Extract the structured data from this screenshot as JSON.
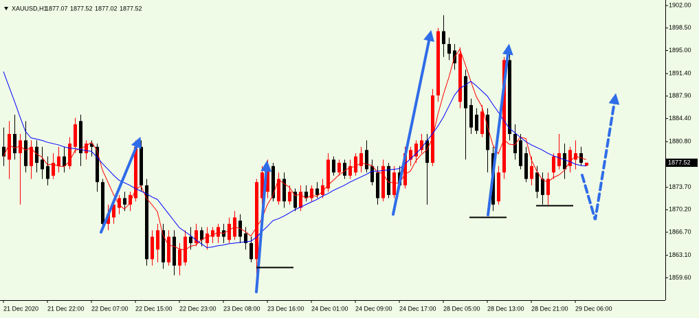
{
  "chart_data": {
    "type": "candlestick",
    "header": {
      "symbol": "XAUUSD,H1"
    },
    "up_color": "#ff0000",
    "down_color": "#000000",
    "background": "#effbe6",
    "ylim": [
      1856.12,
      1902.86
    ],
    "yticks": [
      {
        "value": 1902,
        "label": "1902.00"
      },
      {
        "value": 1898.5,
        "label": "1898.50"
      },
      {
        "value": 1895,
        "label": "1895.00"
      },
      {
        "value": 1891.4,
        "label": "1891.40"
      },
      {
        "value": 1887.9,
        "label": "1887.90"
      },
      {
        "value": 1884.4,
        "label": "1884.40"
      },
      {
        "value": 1880.8,
        "label": "1880.80"
      },
      {
        "value": 1873.7,
        "label": "1873.70"
      },
      {
        "value": 1870.2,
        "label": "1870.20"
      },
      {
        "value": 1866.7,
        "label": "1866.70"
      },
      {
        "value": 1863.1,
        "label": "1863.10"
      },
      {
        "value": 1859.6,
        "label": "1859.60"
      }
    ],
    "xticks": [
      {
        "value": 0,
        "label": "21 Dec 2020"
      },
      {
        "value": 8,
        "label": "21 Dec 22:00"
      },
      {
        "value": 16,
        "label": "22 Dec 07:00"
      },
      {
        "value": 24,
        "label": "22 Dec 15:00"
      },
      {
        "value": 32,
        "label": "22 Dec 23:00"
      },
      {
        "value": 40,
        "label": "23 Dec 08:00"
      },
      {
        "value": 48,
        "label": "23 Dec 16:00"
      },
      {
        "value": 56,
        "label": "24 Dec 01:00"
      },
      {
        "value": 64,
        "label": "24 Dec 09:00"
      },
      {
        "value": 72,
        "label": "24 Dec 17:00"
      },
      {
        "value": 80,
        "label": "28 Dec 05:00"
      },
      {
        "value": 88,
        "label": "28 Dec 13:00"
      },
      {
        "value": 96,
        "label": "28 Dec 21:00"
      },
      {
        "value": 104,
        "label": "29 Dec 06:00"
      }
    ],
    "candles": [
      {
        "o": 1880,
        "h": 1883,
        "l": 1877,
        "c": 1878.5
      },
      {
        "o": 1878,
        "h": 1884,
        "l": 1875,
        "c": 1882
      },
      {
        "o": 1882,
        "h": 1885,
        "l": 1878,
        "c": 1879
      },
      {
        "o": 1879,
        "h": 1882,
        "l": 1871,
        "c": 1881
      },
      {
        "o": 1881,
        "h": 1884,
        "l": 1876,
        "c": 1877
      },
      {
        "o": 1877,
        "h": 1881,
        "l": 1875,
        "c": 1880
      },
      {
        "o": 1880,
        "h": 1881,
        "l": 1876,
        "c": 1877.5
      },
      {
        "o": 1878,
        "h": 1880,
        "l": 1875,
        "c": 1876.5
      },
      {
        "o": 1877,
        "h": 1878.5,
        "l": 1874,
        "c": 1875
      },
      {
        "o": 1875.5,
        "h": 1879,
        "l": 1875,
        "c": 1877.5
      },
      {
        "o": 1877,
        "h": 1880,
        "l": 1876,
        "c": 1878.5
      },
      {
        "o": 1878.5,
        "h": 1880,
        "l": 1876,
        "c": 1877
      },
      {
        "o": 1877,
        "h": 1881.5,
        "l": 1876.5,
        "c": 1880.5
      },
      {
        "o": 1880,
        "h": 1884.5,
        "l": 1879,
        "c": 1883.5
      },
      {
        "o": 1884,
        "h": 1885,
        "l": 1877,
        "c": 1879
      },
      {
        "o": 1879,
        "h": 1881,
        "l": 1878,
        "c": 1880.5
      },
      {
        "o": 1880.5,
        "h": 1881,
        "l": 1878.5,
        "c": 1880
      },
      {
        "o": 1880,
        "h": 1880.5,
        "l": 1873,
        "c": 1874.5
      },
      {
        "o": 1874.5,
        "h": 1875,
        "l": 1867,
        "c": 1868
      },
      {
        "o": 1868,
        "h": 1871,
        "l": 1867,
        "c": 1869.5
      },
      {
        "o": 1869,
        "h": 1872,
        "l": 1868,
        "c": 1871
      },
      {
        "o": 1870.5,
        "h": 1872.5,
        "l": 1869.5,
        "c": 1872
      },
      {
        "o": 1872,
        "h": 1873,
        "l": 1870,
        "c": 1871
      },
      {
        "o": 1871,
        "h": 1873,
        "l": 1870,
        "c": 1872.5
      },
      {
        "o": 1872,
        "h": 1881,
        "l": 1871.5,
        "c": 1880
      },
      {
        "o": 1880,
        "h": 1881,
        "l": 1873,
        "c": 1874
      },
      {
        "o": 1874,
        "h": 1875,
        "l": 1861.5,
        "c": 1862.5
      },
      {
        "o": 1862.5,
        "h": 1867,
        "l": 1861.5,
        "c": 1866
      },
      {
        "o": 1864,
        "h": 1868,
        "l": 1862,
        "c": 1867
      },
      {
        "o": 1867,
        "h": 1868,
        "l": 1861,
        "c": 1862
      },
      {
        "o": 1862,
        "h": 1867,
        "l": 1861.5,
        "c": 1866
      },
      {
        "o": 1866,
        "h": 1867,
        "l": 1860,
        "c": 1861.5
      },
      {
        "o": 1861.5,
        "h": 1865,
        "l": 1860,
        "c": 1864
      },
      {
        "o": 1862,
        "h": 1867,
        "l": 1861.5,
        "c": 1866
      },
      {
        "o": 1866,
        "h": 1867.5,
        "l": 1864,
        "c": 1865
      },
      {
        "o": 1865,
        "h": 1868,
        "l": 1864.5,
        "c": 1867
      },
      {
        "o": 1867,
        "h": 1867.5,
        "l": 1864.5,
        "c": 1865.5
      },
      {
        "o": 1865,
        "h": 1867.5,
        "l": 1864,
        "c": 1866.5
      },
      {
        "o": 1866,
        "h": 1867.5,
        "l": 1865,
        "c": 1867
      },
      {
        "o": 1866,
        "h": 1868,
        "l": 1865,
        "c": 1867.5
      },
      {
        "o": 1867,
        "h": 1868,
        "l": 1865,
        "c": 1866
      },
      {
        "o": 1865.5,
        "h": 1869,
        "l": 1865,
        "c": 1868
      },
      {
        "o": 1866,
        "h": 1870,
        "l": 1865.5,
        "c": 1869
      },
      {
        "o": 1868.5,
        "h": 1869.5,
        "l": 1865,
        "c": 1866
      },
      {
        "o": 1866.5,
        "h": 1867.5,
        "l": 1864,
        "c": 1865
      },
      {
        "o": 1865,
        "h": 1866,
        "l": 1862,
        "c": 1862.5
      },
      {
        "o": 1862.5,
        "h": 1875,
        "l": 1860,
        "c": 1874.5
      },
      {
        "o": 1872,
        "h": 1877,
        "l": 1871,
        "c": 1876
      },
      {
        "o": 1873,
        "h": 1878,
        "l": 1872,
        "c": 1877
      },
      {
        "o": 1877,
        "h": 1877.5,
        "l": 1871.5,
        "c": 1872
      },
      {
        "o": 1871.5,
        "h": 1876,
        "l": 1871,
        "c": 1875
      },
      {
        "o": 1875,
        "h": 1876,
        "l": 1870.5,
        "c": 1871.5
      },
      {
        "o": 1871.5,
        "h": 1874,
        "l": 1871,
        "c": 1873
      },
      {
        "o": 1873,
        "h": 1873.5,
        "l": 1870,
        "c": 1870.5
      },
      {
        "o": 1870.5,
        "h": 1874,
        "l": 1870,
        "c": 1873
      },
      {
        "o": 1873,
        "h": 1874,
        "l": 1871.5,
        "c": 1872
      },
      {
        "o": 1872,
        "h": 1874,
        "l": 1871.5,
        "c": 1873.5
      },
      {
        "o": 1873.5,
        "h": 1874.5,
        "l": 1872,
        "c": 1872.5
      },
      {
        "o": 1872.5,
        "h": 1875,
        "l": 1872,
        "c": 1874
      },
      {
        "o": 1873.5,
        "h": 1879,
        "l": 1873,
        "c": 1878
      },
      {
        "o": 1878,
        "h": 1878.5,
        "l": 1875.5,
        "c": 1876
      },
      {
        "o": 1876,
        "h": 1878,
        "l": 1875.5,
        "c": 1877.5
      },
      {
        "o": 1877.5,
        "h": 1878,
        "l": 1875,
        "c": 1875.5
      },
      {
        "o": 1875.5,
        "h": 1878,
        "l": 1875,
        "c": 1877
      },
      {
        "o": 1876,
        "h": 1879,
        "l": 1875.5,
        "c": 1878.5
      },
      {
        "o": 1877,
        "h": 1880,
        "l": 1876,
        "c": 1879
      },
      {
        "o": 1879.5,
        "h": 1881,
        "l": 1876,
        "c": 1876.5
      },
      {
        "o": 1877,
        "h": 1878,
        "l": 1874,
        "c": 1874.5
      },
      {
        "o": 1876,
        "h": 1877,
        "l": 1871,
        "c": 1872
      },
      {
        "o": 1872,
        "h": 1878,
        "l": 1871.5,
        "c": 1877
      },
      {
        "o": 1877,
        "h": 1877.5,
        "l": 1872,
        "c": 1872.5
      },
      {
        "o": 1872.5,
        "h": 1877,
        "l": 1872,
        "c": 1876
      },
      {
        "o": 1876,
        "h": 1877,
        "l": 1873.5,
        "c": 1874
      },
      {
        "o": 1874,
        "h": 1880,
        "l": 1873.5,
        "c": 1879
      },
      {
        "o": 1878,
        "h": 1880,
        "l": 1877,
        "c": 1879.5
      },
      {
        "o": 1878.5,
        "h": 1881,
        "l": 1877.5,
        "c": 1880.5
      },
      {
        "o": 1879.5,
        "h": 1882,
        "l": 1879,
        "c": 1881
      },
      {
        "o": 1881,
        "h": 1882,
        "l": 1871,
        "c": 1877.5
      },
      {
        "o": 1877.5,
        "h": 1889,
        "l": 1877,
        "c": 1888
      },
      {
        "o": 1888,
        "h": 1898.5,
        "l": 1887,
        "c": 1898
      },
      {
        "o": 1898,
        "h": 1900.5,
        "l": 1894,
        "c": 1896
      },
      {
        "o": 1896,
        "h": 1897,
        "l": 1893.5,
        "c": 1894.5
      },
      {
        "o": 1895,
        "h": 1896,
        "l": 1892,
        "c": 1893
      },
      {
        "o": 1887,
        "h": 1895.5,
        "l": 1886,
        "c": 1894.5
      },
      {
        "o": 1891,
        "h": 1892,
        "l": 1878,
        "c": 1886
      },
      {
        "o": 1886.5,
        "h": 1887.5,
        "l": 1882,
        "c": 1883
      },
      {
        "o": 1885,
        "h": 1886,
        "l": 1882,
        "c": 1882.5
      },
      {
        "o": 1882,
        "h": 1886.5,
        "l": 1881.5,
        "c": 1885.5
      },
      {
        "o": 1885,
        "h": 1886,
        "l": 1876,
        "c": 1879.5
      },
      {
        "o": 1879,
        "h": 1880,
        "l": 1870,
        "c": 1871
      },
      {
        "o": 1871.5,
        "h": 1877,
        "l": 1871,
        "c": 1876
      },
      {
        "o": 1876,
        "h": 1894,
        "l": 1875,
        "c": 1893.5
      },
      {
        "o": 1893.5,
        "h": 1894.5,
        "l": 1881,
        "c": 1882
      },
      {
        "o": 1882,
        "h": 1883.5,
        "l": 1878,
        "c": 1879
      },
      {
        "o": 1881,
        "h": 1882,
        "l": 1876.5,
        "c": 1877
      },
      {
        "o": 1879,
        "h": 1880,
        "l": 1874.5,
        "c": 1875
      },
      {
        "o": 1875,
        "h": 1878.5,
        "l": 1874,
        "c": 1877
      },
      {
        "o": 1876,
        "h": 1877,
        "l": 1872,
        "c": 1873
      },
      {
        "o": 1875,
        "h": 1876,
        "l": 1871,
        "c": 1872.5
      },
      {
        "o": 1872.5,
        "h": 1876,
        "l": 1871,
        "c": 1875
      },
      {
        "o": 1876,
        "h": 1879,
        "l": 1875,
        "c": 1878.5
      },
      {
        "o": 1877,
        "h": 1882,
        "l": 1876.5,
        "c": 1879
      },
      {
        "o": 1879,
        "h": 1880.5,
        "l": 1875,
        "c": 1876.5
      },
      {
        "o": 1877,
        "h": 1880,
        "l": 1876,
        "c": 1879.5
      },
      {
        "o": 1878,
        "h": 1881,
        "l": 1876.5,
        "c": 1879
      },
      {
        "o": 1879,
        "h": 1880,
        "l": 1877,
        "c": 1877.5
      },
      {
        "o": 1877.07,
        "h": 1877.52,
        "l": 1877.02,
        "c": 1877.52
      }
    ],
    "moving_averages": [
      {
        "color": "#ff0000",
        "values": [
          1878.5,
          1880.3,
          1879.8,
          1880.1,
          1879.5,
          1879.8,
          1878.9,
          1878.4,
          1877.2,
          1877.3,
          1877.0,
          1876.9,
          1877.7,
          1879.4,
          1879.7,
          1880.1,
          1880.7,
          1879.5,
          1876.4,
          1874.5,
          1872.6,
          1871.0,
          1870.3,
          1871.2,
          1873.3,
          1873.9,
          1872.0,
          1871.0,
          1869.9,
          1866.3,
          1864.7,
          1864.5,
          1864.1,
          1863.9,
          1864.5,
          1864.7,
          1865.5,
          1866.0,
          1866.2,
          1866.7,
          1866.5,
          1867.0,
          1867.5,
          1867.3,
          1866.8,
          1866.1,
          1867.4,
          1868.8,
          1871.0,
          1872.4,
          1874.9,
          1874.3,
          1873.7,
          1872.4,
          1872.6,
          1872.0,
          1872.4,
          1872.3,
          1873.0,
          1874.0,
          1874.8,
          1875.6,
          1876.2,
          1876.8,
          1876.9,
          1877.5,
          1877.3,
          1877.1,
          1876.1,
          1875.8,
          1874.5,
          1874.4,
          1874.3,
          1875.7,
          1876.2,
          1877.8,
          1878.8,
          1879.5,
          1881.3,
          1885.0,
          1888.1,
          1890.8,
          1893.9,
          1895.2,
          1892.8,
          1890.2,
          1887.8,
          1886.3,
          1883.3,
          1880.3,
          1878.9,
          1881.1,
          1880.4,
          1880.3,
          1881.5,
          1881.3,
          1878.0,
          1876.2,
          1874.9,
          1874.5,
          1875.2,
          1875.6,
          1876.3,
          1877.7,
          1878.5,
          1878.3,
          1878.0
        ]
      },
      {
        "color": "#0000ff",
        "values": [
          1891.7,
          1889.4,
          1887.1,
          1884.7,
          1882.4,
          1881.4,
          1881.2,
          1881.0,
          1880.7,
          1880.5,
          1880.3,
          1880.0,
          1879.8,
          1879.7,
          1879.6,
          1879.4,
          1879.3,
          1878.4,
          1877.4,
          1876.5,
          1875.6,
          1874.8,
          1874.4,
          1874.0,
          1873.5,
          1873.1,
          1872.7,
          1872.2,
          1871.8,
          1870.7,
          1869.6,
          1868.5,
          1867.4,
          1866.8,
          1866.2,
          1865.5,
          1864.9,
          1864.3,
          1864.4,
          1864.6,
          1864.7,
          1864.9,
          1865.0,
          1865.1,
          1865.2,
          1865.3,
          1865.9,
          1866.8,
          1867.6,
          1868.5,
          1868.8,
          1869.2,
          1869.7,
          1870.2,
          1870.6,
          1871.0,
          1871.4,
          1871.8,
          1872.3,
          1872.7,
          1873.2,
          1873.6,
          1874.0,
          1874.5,
          1874.9,
          1875.3,
          1875.7,
          1876.2,
          1876.2,
          1876.3,
          1876.4,
          1876.5,
          1876.6,
          1877.3,
          1878.1,
          1878.9,
          1879.8,
          1880.9,
          1882.0,
          1883.2,
          1884.6,
          1886.3,
          1888.0,
          1889.1,
          1889.6,
          1890.2,
          1889.5,
          1888.7,
          1887.9,
          1886.6,
          1885.4,
          1884.1,
          1882.9,
          1882.2,
          1881.5,
          1880.8,
          1880.3,
          1879.9,
          1879.5,
          1879.0,
          1878.6,
          1878.3,
          1878.0,
          1877.7,
          1877.3,
          1877.1,
          1877.0
        ]
      }
    ]
  }
}
